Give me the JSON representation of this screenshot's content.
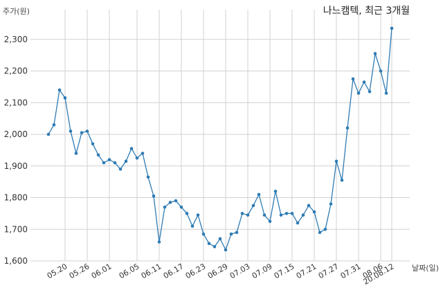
{
  "chart_data": {
    "type": "line",
    "title": "나노캠텍, 최근 3개월",
    "ylabel": "주가(원)",
    "xlabel": "날짜(일)",
    "ylim": [
      1600,
      2350
    ],
    "yticks": [
      1600,
      1700,
      1800,
      1900,
      2000,
      2100,
      2200,
      2300
    ],
    "ytick_labels": [
      "1,600",
      "1,700",
      "1,800",
      "1,900",
      "2,000",
      "2,100",
      "2,200",
      "2,300"
    ],
    "xtick_labels": [
      "05.20",
      "05.26",
      "06.01",
      "06.05",
      "06.11",
      "06.17",
      "06.23",
      "06.29",
      "07.03",
      "07.09",
      "07.15",
      "07.21",
      "07.27",
      "07.31",
      "08.06",
      "20.08.12"
    ],
    "grid": true,
    "series_color": "#2e7bb4",
    "series": [
      {
        "name": "",
        "values": [
          2000,
          2030,
          2140,
          2115,
          2010,
          1940,
          2005,
          2010,
          1970,
          1935,
          1910,
          1920,
          1910,
          1890,
          1915,
          1955,
          1925,
          1940,
          1865,
          1805,
          1660,
          1770,
          1785,
          1790,
          1770,
          1750,
          1710,
          1745,
          1685,
          1655,
          1645,
          1670,
          1635,
          1685,
          1690,
          1750,
          1745,
          1775,
          1810,
          1745,
          1725,
          1820,
          1745,
          1750,
          1750,
          1720,
          1745,
          1775,
          1755,
          1690,
          1700,
          1780,
          1915,
          1855,
          2020,
          2175,
          2130,
          2165,
          2135,
          2255,
          2200,
          2130,
          2335
        ]
      }
    ]
  }
}
